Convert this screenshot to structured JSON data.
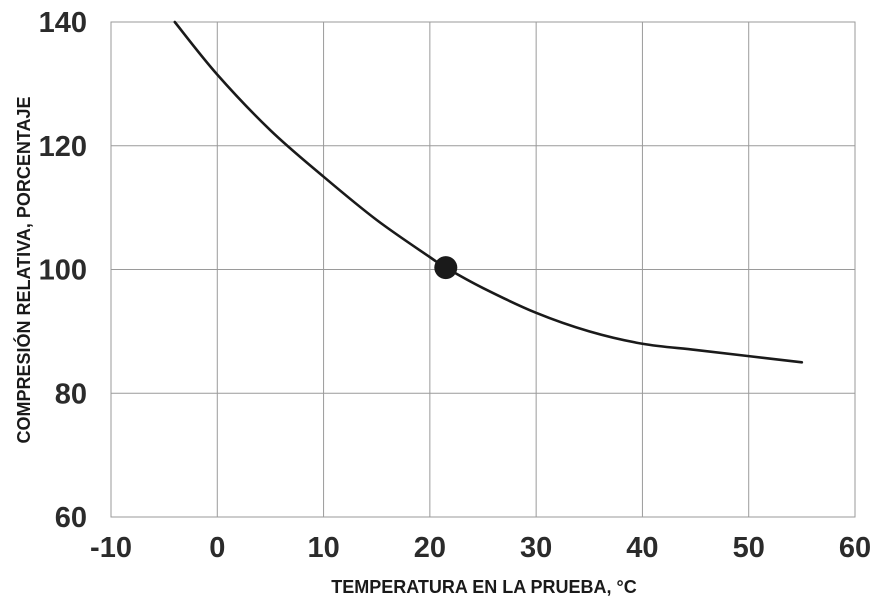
{
  "chart_data": {
    "type": "line",
    "xlabel": "TEMPERATURA EN LA PRUEBA, °C",
    "ylabel": "COMPRESIÓN RELATIVA, PORCENTAJE",
    "xlim": [
      -10,
      60
    ],
    "ylim": [
      60,
      140
    ],
    "xticks": [
      "-10",
      "0",
      "10",
      "20",
      "30",
      "40",
      "50",
      "60"
    ],
    "yticks": [
      "60",
      "80",
      "100",
      "120",
      "140"
    ],
    "grid": true,
    "series": [
      {
        "x": [
          -4,
          0,
          5,
          10,
          15,
          20,
          21.5,
          25,
          30,
          35,
          40,
          45,
          50,
          55
        ],
        "y": [
          140,
          131.5,
          122.5,
          115,
          108,
          102,
          100.3,
          97,
          93,
          90,
          88,
          87,
          86,
          85
        ]
      }
    ],
    "marker": {
      "x": 21.5,
      "y": 100.3
    },
    "colors": {
      "line": "#1a1a1a",
      "grid": "#9a9a9a",
      "marker": "#1a1a1a"
    }
  }
}
